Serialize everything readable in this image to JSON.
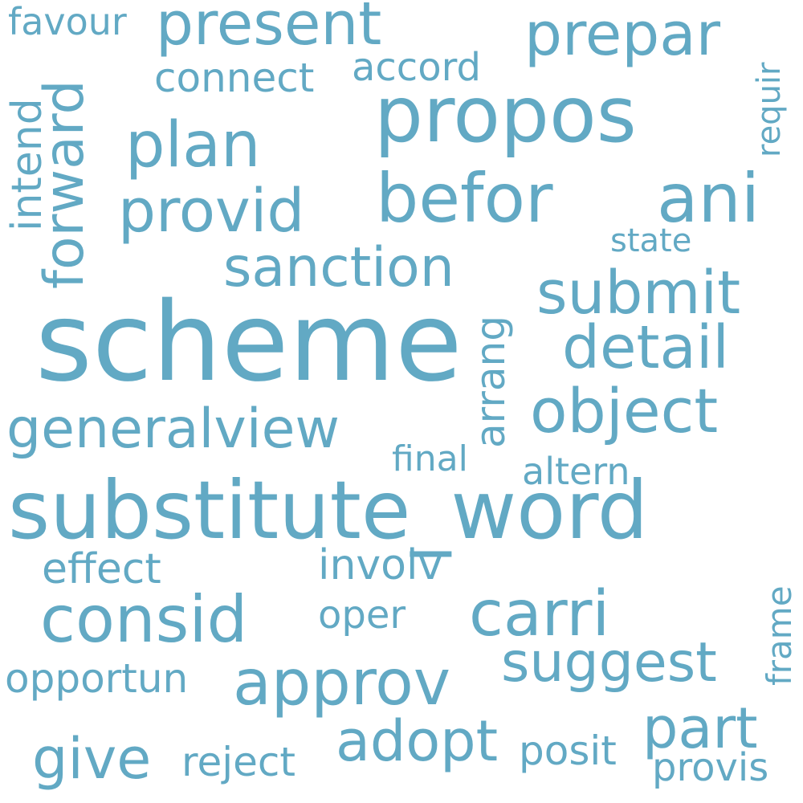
{
  "cloud": {
    "color": "#62a9c4",
    "words": {
      "scheme": "scheme",
      "substitute_word": "substitute_word",
      "propos": "propos",
      "befor": "befor",
      "ani": "ani",
      "plan": "plan",
      "present": "present",
      "prepar": "prepar",
      "provid": "provid",
      "sanction": "sanction",
      "submit": "submit",
      "detail": "detail",
      "object": "object",
      "generalview": "generalview",
      "consid": "consid",
      "carri": "carri",
      "approv": "approv",
      "suggest": "suggest",
      "adopt": "adopt",
      "part": "part",
      "give": "give",
      "forward": "forward",
      "favour": "favour",
      "connect": "connect",
      "accord": "accord",
      "intend": "intend",
      "requir": "requir",
      "state": "state",
      "arrang": "arrang",
      "final": "final",
      "altern": "altern",
      "effect": "effect",
      "involv": "involv",
      "oper": "oper",
      "opportun": "opportun",
      "reject": "reject",
      "posit": "posit",
      "provis": "provis",
      "frame": "frame"
    }
  }
}
